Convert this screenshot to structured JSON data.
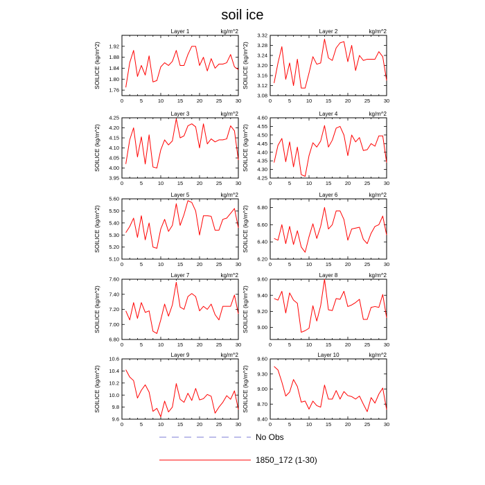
{
  "figure": {
    "title": "soil ice",
    "legend": [
      {
        "label": "No Obs",
        "color": "#7b7bd6",
        "dash": true
      },
      {
        "label": "1850_172 (1-30)",
        "color": "#ff0000",
        "dash": false
      }
    ]
  },
  "chart_data": [
    {
      "type": "line",
      "title": "Layer 1",
      "units": "kg/m^2",
      "ylabel": "SOILICE  (kg/m^2)",
      "xlim": [
        0,
        30
      ],
      "xticks": [
        0,
        10,
        20,
        30
      ],
      "ylim": [
        1.74,
        1.96
      ],
      "yticks": [
        1.76,
        1.8,
        1.84,
        1.88,
        1.92
      ],
      "ydecimals": 2,
      "series": [
        {
          "color": "#ff0000",
          "x": [
            1,
            2,
            3,
            4,
            5,
            6,
            7,
            8,
            9,
            10,
            11,
            12,
            13,
            14,
            15,
            16,
            17,
            18,
            19,
            20,
            21,
            22,
            23,
            24,
            25,
            26,
            27,
            28,
            29,
            30
          ],
          "y": [
            1.77,
            1.86,
            1.905,
            1.81,
            1.85,
            1.815,
            1.885,
            1.79,
            1.795,
            1.845,
            1.86,
            1.85,
            1.865,
            1.905,
            1.85,
            1.85,
            1.89,
            1.92,
            1.92,
            1.85,
            1.88,
            1.83,
            1.875,
            1.84,
            1.855,
            1.855,
            1.86,
            1.89,
            1.845,
            1.835
          ]
        }
      ]
    },
    {
      "type": "line",
      "title": "Layer 2",
      "units": "kg/m^2",
      "ylabel": "SOILICE  (kg/m^2)",
      "xlim": [
        0,
        30
      ],
      "xticks": [
        0,
        10,
        20,
        30
      ],
      "ylim": [
        3.08,
        3.32
      ],
      "yticks": [
        3.08,
        3.12,
        3.16,
        3.2,
        3.24,
        3.28,
        3.32
      ],
      "ydecimals": 2,
      "series": [
        {
          "color": "#ff0000",
          "x": [
            1,
            2,
            3,
            4,
            5,
            6,
            7,
            8,
            9,
            10,
            11,
            12,
            13,
            14,
            15,
            16,
            17,
            18,
            19,
            20,
            21,
            22,
            23,
            24,
            25,
            26,
            27,
            28,
            29,
            30
          ],
          "y": [
            3.13,
            3.21,
            3.275,
            3.145,
            3.21,
            3.12,
            3.225,
            3.11,
            3.11,
            3.17,
            3.235,
            3.205,
            3.21,
            3.305,
            3.23,
            3.22,
            3.27,
            3.29,
            3.295,
            3.215,
            3.28,
            3.18,
            3.24,
            3.22,
            3.225,
            3.225,
            3.225,
            3.255,
            3.235,
            3.14
          ]
        }
      ]
    },
    {
      "type": "line",
      "title": "Layer 3",
      "units": "kg/m^2",
      "ylabel": "SOILICE  (kg/m^2)",
      "xlim": [
        0,
        30
      ],
      "xticks": [
        0,
        10,
        20,
        30
      ],
      "ylim": [
        3.95,
        4.25
      ],
      "yticks": [
        3.95,
        4.0,
        4.05,
        4.1,
        4.15,
        4.2,
        4.25
      ],
      "ydecimals": 2,
      "series": [
        {
          "color": "#ff0000",
          "x": [
            1,
            2,
            3,
            4,
            5,
            6,
            7,
            8,
            9,
            10,
            11,
            12,
            13,
            14,
            15,
            16,
            17,
            18,
            19,
            20,
            21,
            22,
            23,
            24,
            25,
            26,
            27,
            28,
            29,
            30
          ],
          "y": [
            4.02,
            4.14,
            4.2,
            4.055,
            4.155,
            4.02,
            4.165,
            4.005,
            4.0,
            4.09,
            4.14,
            4.115,
            4.135,
            4.245,
            4.15,
            4.16,
            4.21,
            4.22,
            4.205,
            4.1,
            4.22,
            4.12,
            4.145,
            4.13,
            4.14,
            4.14,
            4.145,
            4.21,
            4.185,
            4.04
          ]
        }
      ]
    },
    {
      "type": "line",
      "title": "Layer 4",
      "units": "kg/m^2",
      "ylabel": "SOILICE  (kg/m^2)",
      "xlim": [
        0,
        30
      ],
      "xticks": [
        0,
        10,
        20,
        30
      ],
      "ylim": [
        4.25,
        4.6
      ],
      "yticks": [
        4.25,
        4.3,
        4.35,
        4.4,
        4.45,
        4.5,
        4.55,
        4.6
      ],
      "ydecimals": 2,
      "series": [
        {
          "color": "#ff0000",
          "x": [
            1,
            2,
            3,
            4,
            5,
            6,
            7,
            8,
            9,
            10,
            11,
            12,
            13,
            14,
            15,
            16,
            17,
            18,
            19,
            20,
            21,
            22,
            23,
            24,
            25,
            26,
            27,
            28,
            29,
            30
          ],
          "y": [
            4.34,
            4.44,
            4.48,
            4.345,
            4.46,
            4.315,
            4.43,
            4.27,
            4.26,
            4.38,
            4.455,
            4.43,
            4.465,
            4.555,
            4.43,
            4.47,
            4.54,
            4.55,
            4.5,
            4.38,
            4.5,
            4.46,
            4.485,
            4.41,
            4.415,
            4.45,
            4.435,
            4.495,
            4.495,
            4.34
          ]
        }
      ]
    },
    {
      "type": "line",
      "title": "Layer 5",
      "units": "kg/m^2",
      "ylabel": "SOILICE  (kg/m^2)",
      "xlim": [
        0,
        30
      ],
      "xticks": [
        0,
        10,
        20,
        30
      ],
      "ylim": [
        5.1,
        5.6
      ],
      "yticks": [
        5.1,
        5.2,
        5.3,
        5.4,
        5.5,
        5.6
      ],
      "ydecimals": 2,
      "series": [
        {
          "color": "#ff0000",
          "x": [
            1,
            2,
            3,
            4,
            5,
            6,
            7,
            8,
            9,
            10,
            11,
            12,
            13,
            14,
            15,
            16,
            17,
            18,
            19,
            20,
            21,
            22,
            23,
            24,
            25,
            26,
            27,
            28,
            29,
            30
          ],
          "y": [
            5.32,
            5.37,
            5.44,
            5.28,
            5.46,
            5.26,
            5.4,
            5.2,
            5.19,
            5.35,
            5.43,
            5.33,
            5.38,
            5.56,
            5.38,
            5.47,
            5.585,
            5.57,
            5.5,
            5.3,
            5.46,
            5.46,
            5.455,
            5.34,
            5.34,
            5.43,
            5.44,
            5.48,
            5.52,
            5.36
          ]
        }
      ]
    },
    {
      "type": "line",
      "title": "Layer 6",
      "units": "kg/m^2",
      "ylabel": "SOILICE  (kg/m^2)",
      "xlim": [
        0,
        30
      ],
      "xticks": [
        0,
        10,
        20,
        30
      ],
      "ylim": [
        6.2,
        6.9
      ],
      "yticks": [
        6.2,
        6.4,
        6.6,
        6.8
      ],
      "ydecimals": 2,
      "series": [
        {
          "color": "#ff0000",
          "x": [
            1,
            2,
            3,
            4,
            5,
            6,
            7,
            8,
            9,
            10,
            11,
            12,
            13,
            14,
            15,
            16,
            17,
            18,
            19,
            20,
            21,
            22,
            23,
            24,
            25,
            26,
            27,
            28,
            29,
            30
          ],
          "y": [
            6.44,
            6.42,
            6.6,
            6.38,
            6.58,
            6.37,
            6.53,
            6.34,
            6.28,
            6.46,
            6.61,
            6.44,
            6.58,
            6.8,
            6.55,
            6.6,
            6.76,
            6.76,
            6.66,
            6.42,
            6.55,
            6.56,
            6.57,
            6.43,
            6.38,
            6.5,
            6.58,
            6.6,
            6.7,
            6.48
          ]
        }
      ]
    },
    {
      "type": "line",
      "title": "Layer 7",
      "units": "kg/m^2",
      "ylabel": "SOILICE  (kg/m^2)",
      "xlim": [
        0,
        30
      ],
      "xticks": [
        0,
        10,
        20,
        30
      ],
      "ylim": [
        6.8,
        7.6
      ],
      "yticks": [
        6.8,
        7.0,
        7.2,
        7.4,
        7.6
      ],
      "ydecimals": 2,
      "series": [
        {
          "color": "#ff0000",
          "x": [
            1,
            2,
            3,
            4,
            5,
            6,
            7,
            8,
            9,
            10,
            11,
            12,
            13,
            14,
            15,
            16,
            17,
            18,
            19,
            20,
            21,
            22,
            23,
            24,
            25,
            26,
            27,
            28,
            29,
            30
          ],
          "y": [
            7.18,
            7.06,
            7.29,
            7.08,
            7.29,
            7.16,
            7.18,
            6.91,
            6.88,
            7.06,
            7.27,
            7.11,
            7.26,
            7.56,
            7.23,
            7.2,
            7.37,
            7.41,
            7.37,
            7.18,
            7.24,
            7.2,
            7.27,
            7.13,
            7.06,
            7.24,
            7.24,
            7.24,
            7.39,
            7.14
          ]
        }
      ]
    },
    {
      "type": "line",
      "title": "Layer 8",
      "units": "kg/m^2",
      "ylabel": "SOILICE  (kg/m^2)",
      "xlim": [
        0,
        30
      ],
      "xticks": [
        0,
        10,
        20,
        30
      ],
      "ylim": [
        8.85,
        9.6
      ],
      "yticks": [
        9.0,
        9.2,
        9.4,
        9.6
      ],
      "ydecimals": 2,
      "series": [
        {
          "color": "#ff0000",
          "x": [
            1,
            2,
            3,
            4,
            5,
            6,
            7,
            8,
            9,
            10,
            11,
            12,
            13,
            14,
            15,
            16,
            17,
            18,
            19,
            20,
            21,
            22,
            23,
            24,
            25,
            26,
            27,
            28,
            29,
            30
          ],
          "y": [
            9.36,
            9.34,
            9.45,
            9.18,
            9.43,
            9.34,
            9.3,
            8.94,
            8.96,
            8.99,
            9.27,
            9.08,
            9.27,
            9.6,
            9.22,
            9.21,
            9.36,
            9.35,
            9.45,
            9.26,
            9.28,
            9.31,
            9.35,
            9.1,
            9.1,
            9.25,
            9.26,
            9.25,
            9.41,
            9.12
          ]
        }
      ]
    },
    {
      "type": "line",
      "title": "Layer 9",
      "units": "kg/m^2",
      "ylabel": "SOILICE  (kg/m^2)",
      "xlim": [
        0,
        30
      ],
      "xticks": [
        0,
        10,
        20,
        30
      ],
      "ylim": [
        9.6,
        10.6
      ],
      "yticks": [
        9.6,
        9.8,
        10.0,
        10.2,
        10.4,
        10.6
      ],
      "ydecimals": 1,
      "series": [
        {
          "color": "#ff0000",
          "x": [
            1,
            2,
            3,
            4,
            5,
            6,
            7,
            8,
            9,
            10,
            11,
            12,
            13,
            14,
            15,
            16,
            17,
            18,
            19,
            20,
            21,
            22,
            23,
            24,
            25,
            26,
            27,
            28,
            29,
            30
          ],
          "y": [
            10.42,
            10.3,
            10.24,
            9.95,
            10.08,
            10.17,
            10.05,
            9.73,
            9.78,
            9.64,
            9.9,
            9.72,
            9.8,
            10.19,
            9.93,
            9.88,
            10.03,
            9.91,
            10.11,
            9.92,
            9.94,
            10.01,
            9.98,
            9.7,
            9.8,
            9.88,
            9.99,
            9.93,
            10.07,
            9.76
          ]
        }
      ]
    },
    {
      "type": "line",
      "title": "Layer 10",
      "units": "kg/m^2",
      "ylabel": "SOILICE  (kg/m^2)",
      "xlim": [
        0,
        30
      ],
      "xticks": [
        0,
        10,
        20,
        30
      ],
      "ylim": [
        8.4,
        9.6
      ],
      "yticks": [
        8.4,
        8.7,
        9.0,
        9.3,
        9.6
      ],
      "ydecimals": 2,
      "series": [
        {
          "color": "#ff0000",
          "x": [
            1,
            2,
            3,
            4,
            5,
            6,
            7,
            8,
            9,
            10,
            11,
            12,
            13,
            14,
            15,
            16,
            17,
            18,
            19,
            20,
            21,
            22,
            23,
            24,
            25,
            26,
            27,
            28,
            29,
            30
          ],
          "y": [
            9.45,
            9.38,
            9.14,
            8.86,
            8.94,
            9.19,
            9.05,
            8.74,
            8.76,
            8.6,
            8.76,
            8.67,
            8.64,
            9.08,
            8.8,
            8.8,
            8.97,
            8.8,
            8.95,
            8.87,
            8.85,
            8.8,
            8.86,
            8.7,
            8.55,
            8.83,
            8.72,
            8.9,
            9.02,
            8.59
          ]
        }
      ]
    }
  ]
}
